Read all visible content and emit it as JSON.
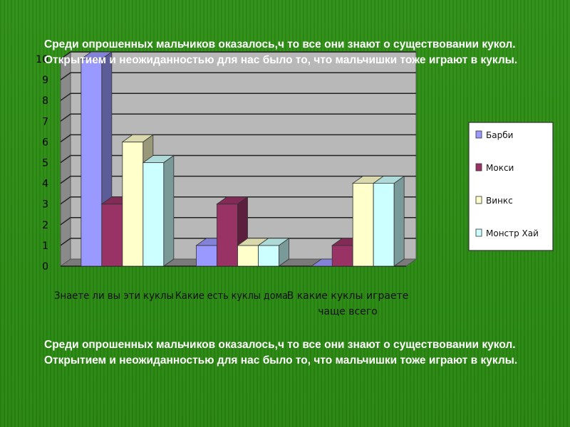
{
  "slide": {
    "top_text": "Среди опрошенных мальчиков оказалось,ч то все они знают о существовании кукол. Открытием и неожиданностью для нас было то, что мальчишки тоже играют в куклы.",
    "bottom_text": "Среди опрошенных мальчиков оказалось,ч то все они знают о существовании кукол. Открытием и неожиданностью для нас было то, что мальчишки тоже играют в куклы."
  },
  "colors": {
    "background": "#2a8a12",
    "text": "#ffffff",
    "plot_back_wall": "#b8b8b8",
    "plot_side_wall": "#8a8a8a",
    "plot_floor": "#7a7a7a",
    "legend_bg": "#ffffff"
  },
  "chart_data": {
    "type": "bar",
    "title": "",
    "xlabel": "",
    "ylabel": "",
    "ylim": [
      0,
      10
    ],
    "yticks": [
      0,
      1,
      2,
      3,
      4,
      5,
      6,
      7,
      8,
      9,
      10
    ],
    "grid": true,
    "legend_position": "right",
    "categories": [
      "Знаете ли вы эти куклы",
      "Какие есть куклы дома",
      "В какие куклы играете чаще всего"
    ],
    "series": [
      {
        "name": "Барби",
        "values": [
          10,
          1,
          0
        ],
        "color": "#9999ff"
      },
      {
        "name": "Мокси",
        "values": [
          3,
          3,
          1
        ],
        "color": "#993366"
      },
      {
        "name": "Винкс",
        "values": [
          6,
          1,
          4
        ],
        "color": "#ffffcc"
      },
      {
        "name": "Монстр Хай",
        "values": [
          5,
          1,
          4
        ],
        "color": "#ccffff"
      }
    ]
  }
}
